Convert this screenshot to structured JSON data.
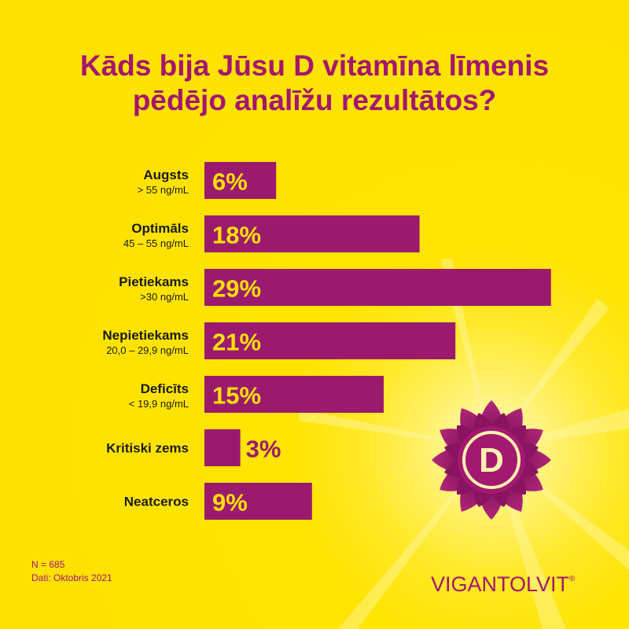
{
  "title_line1": "Kāds bija Jūsu D vitamīna līmenis",
  "title_line2": "pēdējo analīžu rezultātos?",
  "chart_data": {
    "type": "bar",
    "orientation": "horizontal",
    "categories": [
      "Augsts",
      "Optimāls",
      "Pietiekams",
      "Nepietiekams",
      "Deficīts",
      "Kritiski zems",
      "Neatceros"
    ],
    "sublabels": [
      "> 55 ng/mL",
      "45 – 55 ng/mL",
      ">30 ng/mL",
      "20,0 – 29,9 ng/mL",
      "< 19,9 ng/mL",
      "",
      ""
    ],
    "values": [
      6,
      18,
      29,
      21,
      15,
      3,
      9
    ],
    "value_labels": [
      "6%",
      "18%",
      "29%",
      "21%",
      "15%",
      "3%",
      "9%"
    ],
    "unit": "%",
    "xlim": [
      0,
      30
    ],
    "grid": false,
    "legend": "none"
  },
  "footnote": {
    "n": "N = 685",
    "date": "Dati: Oktobris 2021"
  },
  "logo": {
    "icon": "vitamin-d-sun-icon",
    "letter": "D",
    "brand": "VIGANTOLVIT",
    "registered": "®"
  },
  "colors": {
    "background": "#ffe100",
    "bar": "#9b1a6e",
    "bar_value_text": "#ffe100",
    "title": "#a4166f",
    "label": "#1a1a1a"
  }
}
